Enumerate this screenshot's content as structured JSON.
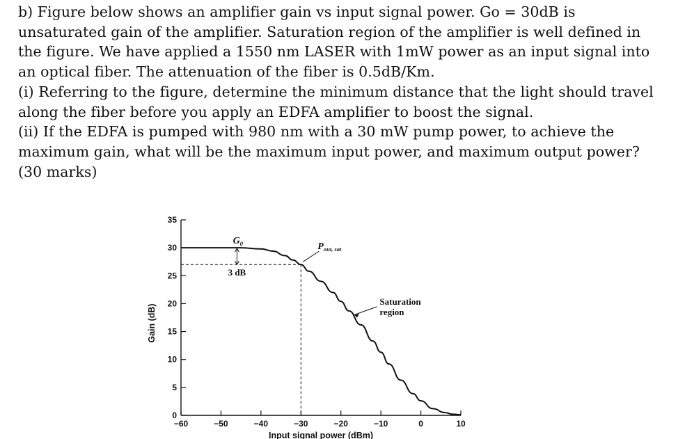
{
  "question": {
    "lines": [
      "b) Figure below shows an amplifier gain vs input signal power. Go = 30dB is",
      "unsaturated gain of the amplifier. Saturation region of the amplifier is well defined in",
      "the figure.  We have applied a 1550 nm LASER with 1mW power as an input signal into",
      "an optical fiber. The attenuation of the fiber is 0.5dB/Km.",
      "(i) Referring to the figure, determine the minimum distance that the light should travel",
      "along the fiber before you apply an EDFA amplifier to boost the signal.",
      "(ii) If the EDFA is pumped with 980 nm with a 30 mW pump power, to achieve the",
      "maximum gain, what will be the maximum input power, and maximum output power?",
      "(30 marks)"
    ]
  },
  "chart_data": {
    "type": "line",
    "xlabel": "Input signal power (dBm)",
    "ylabel": "Gain (dB)",
    "xlim": [
      -60,
      10
    ],
    "ylim": [
      0,
      35
    ],
    "x_ticks": [
      -60,
      -50,
      -40,
      -30,
      -20,
      -10,
      0,
      10
    ],
    "x_tick_labels": [
      "−60",
      "−50",
      "−40",
      "−30",
      "−20",
      "−10",
      "0",
      "10"
    ],
    "y_ticks": [
      0,
      5,
      10,
      15,
      20,
      25,
      30,
      35
    ],
    "y_tick_labels": [
      "0",
      "5",
      "10",
      "15",
      "20",
      "25",
      "30",
      "35"
    ],
    "grid": false,
    "legend": "none",
    "series": [
      {
        "x": [
          -60,
          -50,
          -45,
          -40,
          -37,
          -34,
          -32,
          -30,
          -28,
          -25,
          -22,
          -20,
          -18,
          -15,
          -12,
          -10,
          -8,
          -5,
          -2,
          0,
          3,
          6,
          8,
          10
        ],
        "y": [
          30,
          30,
          30,
          29.8,
          29.4,
          28.6,
          27.8,
          27,
          25.8,
          24,
          22,
          20.4,
          18.7,
          16.2,
          13.3,
          11.3,
          9.2,
          6.3,
          3.9,
          2.6,
          1.2,
          0.5,
          0.2,
          0.1
        ]
      }
    ],
    "annotations": {
      "g0": {
        "main": "G",
        "sub": "0",
        "x": -47,
        "y": 30
      },
      "three_db": {
        "label": "3 dB",
        "x": -46,
        "y": 27
      },
      "pout_sat": {
        "main": "P",
        "sub": "out, sat",
        "x": -30,
        "y": 27
      },
      "saturation": {
        "line1": "Saturation",
        "line2": "region",
        "x": -11,
        "y": 19.7,
        "arrow_to": [
          -17,
          18
        ]
      }
    }
  }
}
